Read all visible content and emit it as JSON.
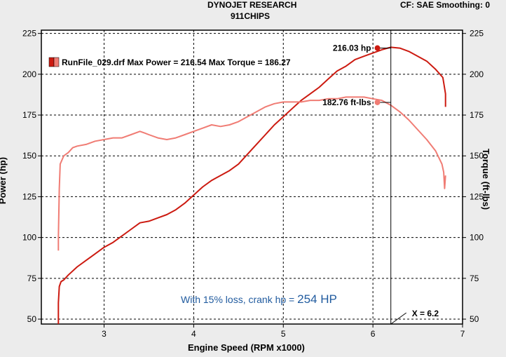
{
  "header": {
    "line1": "DYNOJET RESEARCH",
    "line2": "911CHIPS",
    "right": "CF: SAE  Smoothing: 0"
  },
  "chart_data": {
    "type": "line",
    "xlabel": "Engine Speed (RPM x1000)",
    "ylabel": "Power (hp)",
    "y2label": "Torque (ft-lbs)",
    "xlim": [
      2.3,
      7.0
    ],
    "ylim": [
      47,
      227
    ],
    "x_ticks": [
      "3",
      "4",
      "5",
      "6",
      "7"
    ],
    "y_ticks": [
      50,
      75,
      100,
      125,
      150,
      175,
      200,
      225
    ],
    "y2_ticks": [
      50,
      75,
      100,
      125,
      150,
      175,
      200,
      225
    ],
    "grid": true,
    "legend_text": "RunFile_029.drf Max Power = 216.54 Max Torque = 186.27",
    "legend_placement": "top-left",
    "colors": {
      "power": "#cc1a10",
      "torque": "#f07c74",
      "note": "#1f5a9e"
    },
    "series": [
      {
        "key": "power",
        "points": [
          [
            2.49,
            47
          ],
          [
            2.49,
            60
          ],
          [
            2.5,
            70
          ],
          [
            2.52,
            73
          ],
          [
            2.55,
            74
          ],
          [
            2.6,
            77
          ],
          [
            2.7,
            82
          ],
          [
            2.8,
            86
          ],
          [
            2.9,
            90
          ],
          [
            3.0,
            94
          ],
          [
            3.1,
            97
          ],
          [
            3.2,
            101
          ],
          [
            3.3,
            105
          ],
          [
            3.4,
            109
          ],
          [
            3.5,
            110
          ],
          [
            3.6,
            112
          ],
          [
            3.7,
            114
          ],
          [
            3.8,
            117
          ],
          [
            3.9,
            121
          ],
          [
            4.0,
            126
          ],
          [
            4.1,
            131
          ],
          [
            4.2,
            135
          ],
          [
            4.3,
            138
          ],
          [
            4.4,
            141
          ],
          [
            4.5,
            145
          ],
          [
            4.6,
            151
          ],
          [
            4.7,
            157
          ],
          [
            4.8,
            163
          ],
          [
            4.9,
            169
          ],
          [
            5.0,
            174
          ],
          [
            5.1,
            179
          ],
          [
            5.2,
            184
          ],
          [
            5.3,
            188
          ],
          [
            5.4,
            192
          ],
          [
            5.5,
            197
          ],
          [
            5.6,
            202
          ],
          [
            5.7,
            205
          ],
          [
            5.8,
            209
          ],
          [
            5.9,
            211
          ],
          [
            6.0,
            213
          ],
          [
            6.1,
            215
          ],
          [
            6.2,
            216.5
          ],
          [
            6.3,
            216
          ],
          [
            6.4,
            214
          ],
          [
            6.5,
            211
          ],
          [
            6.6,
            208
          ],
          [
            6.7,
            203
          ],
          [
            6.78,
            198
          ],
          [
            6.81,
            188
          ],
          [
            6.81,
            180
          ]
        ]
      },
      {
        "key": "torque",
        "points": [
          [
            2.49,
            92
          ],
          [
            2.49,
            100
          ],
          [
            2.5,
            130
          ],
          [
            2.51,
            145
          ],
          [
            2.55,
            150
          ],
          [
            2.6,
            152
          ],
          [
            2.65,
            155
          ],
          [
            2.7,
            156
          ],
          [
            2.8,
            157
          ],
          [
            2.9,
            159
          ],
          [
            3.0,
            160
          ],
          [
            3.1,
            161
          ],
          [
            3.2,
            161
          ],
          [
            3.3,
            163
          ],
          [
            3.4,
            165
          ],
          [
            3.45,
            164
          ],
          [
            3.5,
            163
          ],
          [
            3.6,
            161
          ],
          [
            3.7,
            160
          ],
          [
            3.8,
            161
          ],
          [
            3.9,
            163
          ],
          [
            4.0,
            165
          ],
          [
            4.1,
            167
          ],
          [
            4.2,
            169
          ],
          [
            4.3,
            168
          ],
          [
            4.4,
            169
          ],
          [
            4.5,
            171
          ],
          [
            4.6,
            174
          ],
          [
            4.7,
            177
          ],
          [
            4.8,
            180
          ],
          [
            4.9,
            182
          ],
          [
            5.0,
            183
          ],
          [
            5.1,
            183
          ],
          [
            5.2,
            183
          ],
          [
            5.3,
            184
          ],
          [
            5.4,
            184
          ],
          [
            5.5,
            185
          ],
          [
            5.6,
            185
          ],
          [
            5.7,
            186
          ],
          [
            5.8,
            186
          ],
          [
            5.9,
            186
          ],
          [
            6.0,
            185
          ],
          [
            6.1,
            184
          ],
          [
            6.2,
            181
          ],
          [
            6.3,
            177
          ],
          [
            6.4,
            172
          ],
          [
            6.5,
            166
          ],
          [
            6.6,
            160
          ],
          [
            6.7,
            153
          ],
          [
            6.77,
            145
          ],
          [
            6.79,
            140
          ],
          [
            6.8,
            130
          ],
          [
            6.81,
            138
          ]
        ]
      }
    ],
    "markers": [
      {
        "series": "power",
        "x": 6.05,
        "y": 216.03,
        "label": "216.03 hp"
      },
      {
        "series": "torque",
        "x": 6.05,
        "y": 182.76,
        "label": "182.76 ft-lbs"
      }
    ],
    "cursor": {
      "x": 6.2,
      "label": "X = 6.2"
    },
    "note": {
      "prefix": "With 15% loss, crank hp = ",
      "value": "254 HP"
    }
  }
}
